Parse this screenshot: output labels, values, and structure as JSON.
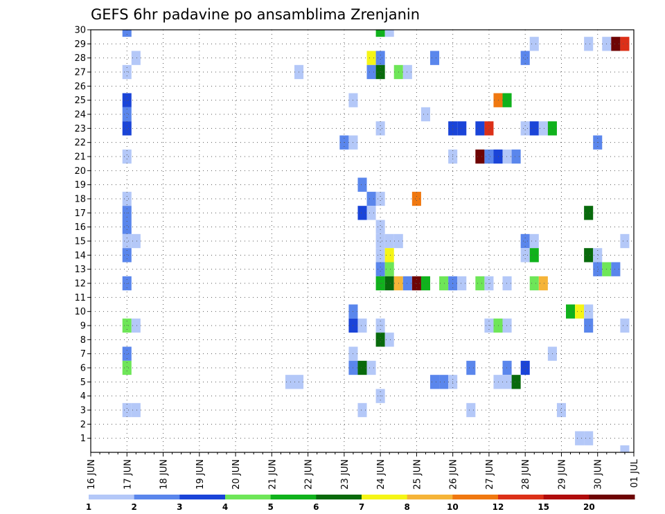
{
  "chart_data": {
    "type": "heatmap",
    "title": "GEFS 6hr padavine po ansamblima Zrenjanin",
    "y_ticks": [
      1,
      2,
      3,
      4,
      5,
      6,
      7,
      8,
      9,
      10,
      11,
      12,
      13,
      14,
      15,
      16,
      17,
      18,
      19,
      20,
      21,
      22,
      23,
      24,
      25,
      26,
      27,
      28,
      29,
      30
    ],
    "ylim": [
      0,
      30
    ],
    "x_ticks": [
      "16 JUN",
      "17 JUN",
      "18 JUN",
      "19 JUN",
      "20 JUN",
      "21 JUN",
      "22 JUN",
      "23 JUN",
      "24 JUN",
      "25 JUN",
      "26 JUN",
      "27 JUN",
      "28 JUN",
      "29 JUN",
      "30 JUN",
      "01 JUL"
    ],
    "x_tick_days": [
      0,
      1,
      2,
      3,
      4,
      5,
      6,
      7,
      8,
      9,
      10,
      11,
      12,
      13,
      14,
      15
    ],
    "x_axis_start": "16 JUN",
    "x_step": "6hr",
    "grid": true,
    "legend": {
      "placement": "bottom",
      "colors": [
        "#b4c8f8",
        "#5a86ec",
        "#1a44d8",
        "#6ee658",
        "#10b21c",
        "#086a0c",
        "#f5f516",
        "#f5b438",
        "#f07810",
        "#dc3018",
        "#b00c0c",
        "#6e0404"
      ],
      "labels": [
        "1",
        "2",
        "3",
        "4",
        "5",
        "6",
        "7",
        "8",
        "10",
        "12",
        "15",
        "20"
      ]
    },
    "cells": [
      {
        "m": 30,
        "x": [
          [
            4,
            2
          ]
        ]
      },
      {
        "m": 30,
        "x": [
          [
            32,
            5
          ],
          [
            33,
            1
          ]
        ]
      },
      {
        "m": 29,
        "x": [
          [
            49,
            1
          ],
          [
            55,
            1
          ],
          [
            57,
            1
          ],
          [
            58,
            12
          ],
          [
            59,
            10
          ]
        ]
      },
      {
        "m": 28,
        "x": [
          [
            5,
            1
          ],
          [
            31,
            7
          ],
          [
            32,
            2
          ],
          [
            38,
            2
          ],
          [
            48,
            2
          ]
        ]
      },
      {
        "m": 27,
        "x": [
          [
            4,
            1
          ],
          [
            23,
            1
          ],
          [
            31,
            2
          ],
          [
            32,
            6
          ],
          [
            34,
            4
          ],
          [
            35,
            1
          ]
        ]
      },
      {
        "m": 25,
        "x": [
          [
            4,
            3
          ],
          [
            29,
            1
          ],
          [
            45,
            9
          ],
          [
            46,
            5
          ]
        ]
      },
      {
        "m": 24,
        "x": [
          [
            4,
            2
          ],
          [
            37,
            1
          ]
        ]
      },
      {
        "m": 23,
        "x": [
          [
            4,
            3
          ],
          [
            32,
            1
          ],
          [
            40,
            3
          ],
          [
            41,
            3
          ],
          [
            43,
            3
          ],
          [
            44,
            10
          ],
          [
            48,
            1
          ],
          [
            49,
            3
          ],
          [
            50,
            1
          ],
          [
            51,
            5
          ]
        ]
      },
      {
        "m": 22,
        "x": [
          [
            28,
            2
          ],
          [
            29,
            1
          ],
          [
            56,
            2
          ]
        ]
      },
      {
        "m": 21,
        "x": [
          [
            4,
            1
          ],
          [
            40,
            1
          ],
          [
            43,
            12
          ],
          [
            44,
            2
          ],
          [
            45,
            3
          ],
          [
            46,
            1
          ],
          [
            47,
            2
          ]
        ]
      },
      {
        "m": 19,
        "x": [
          [
            30,
            2
          ]
        ]
      },
      {
        "m": 18,
        "x": [
          [
            4,
            1
          ],
          [
            31,
            2
          ],
          [
            32,
            1
          ],
          [
            36,
            9
          ]
        ]
      },
      {
        "m": 17,
        "x": [
          [
            4,
            2
          ],
          [
            30,
            3
          ],
          [
            31,
            1
          ],
          [
            55,
            6
          ]
        ]
      },
      {
        "m": 16,
        "x": [
          [
            4,
            2
          ],
          [
            32,
            1
          ]
        ]
      },
      {
        "m": 15,
        "x": [
          [
            4,
            1
          ],
          [
            5,
            1
          ],
          [
            32,
            1
          ],
          [
            33,
            1
          ],
          [
            34,
            1
          ],
          [
            48,
            2
          ],
          [
            49,
            1
          ],
          [
            59,
            1
          ]
        ]
      },
      {
        "m": 14,
        "x": [
          [
            4,
            2
          ],
          [
            32,
            1
          ],
          [
            33,
            7
          ],
          [
            48,
            1
          ],
          [
            49,
            5
          ],
          [
            55,
            6
          ],
          [
            56,
            1
          ]
        ]
      },
      {
        "m": 13,
        "x": [
          [
            32,
            2
          ],
          [
            33,
            4
          ],
          [
            56,
            2
          ],
          [
            57,
            4
          ],
          [
            58,
            2
          ]
        ]
      },
      {
        "m": 12,
        "x": [
          [
            4,
            2
          ],
          [
            32,
            5
          ],
          [
            33,
            6
          ],
          [
            34,
            8
          ],
          [
            35,
            2
          ],
          [
            36,
            12
          ],
          [
            37,
            5
          ],
          [
            39,
            4
          ],
          [
            40,
            2
          ],
          [
            41,
            1
          ],
          [
            43,
            4
          ],
          [
            44,
            1
          ],
          [
            46,
            1
          ],
          [
            49,
            4
          ],
          [
            50,
            8
          ]
        ]
      },
      {
        "m": 10,
        "x": [
          [
            29,
            2
          ],
          [
            53,
            5
          ],
          [
            54,
            7
          ],
          [
            55,
            1
          ]
        ]
      },
      {
        "m": 9,
        "x": [
          [
            4,
            4
          ],
          [
            5,
            1
          ],
          [
            29,
            3
          ],
          [
            30,
            1
          ],
          [
            32,
            1
          ],
          [
            44,
            1
          ],
          [
            45,
            4
          ],
          [
            46,
            1
          ],
          [
            55,
            2
          ],
          [
            59,
            1
          ]
        ]
      },
      {
        "m": 8,
        "x": [
          [
            32,
            6
          ],
          [
            33,
            1
          ]
        ]
      },
      {
        "m": 7,
        "x": [
          [
            4,
            2
          ],
          [
            29,
            1
          ],
          [
            51,
            1
          ]
        ]
      },
      {
        "m": 6,
        "x": [
          [
            4,
            4
          ],
          [
            29,
            2
          ],
          [
            30,
            6
          ],
          [
            31,
            1
          ],
          [
            42,
            2
          ],
          [
            46,
            2
          ],
          [
            48,
            3
          ]
        ]
      },
      {
        "m": 5,
        "x": [
          [
            22,
            1
          ],
          [
            23,
            1
          ],
          [
            38,
            2
          ],
          [
            39,
            2
          ],
          [
            40,
            1
          ],
          [
            45,
            1
          ],
          [
            46,
            1
          ],
          [
            47,
            6
          ]
        ]
      },
      {
        "m": 4,
        "x": [
          [
            32,
            1
          ]
        ]
      },
      {
        "m": 3,
        "x": [
          [
            4,
            1
          ],
          [
            5,
            1
          ],
          [
            30,
            1
          ],
          [
            42,
            1
          ],
          [
            52,
            1
          ]
        ]
      },
      {
        "m": 1,
        "x": [
          [
            54,
            1
          ],
          [
            55,
            1
          ]
        ]
      },
      {
        "m": 0,
        "x": [
          [
            59,
            1
          ]
        ]
      }
    ]
  }
}
